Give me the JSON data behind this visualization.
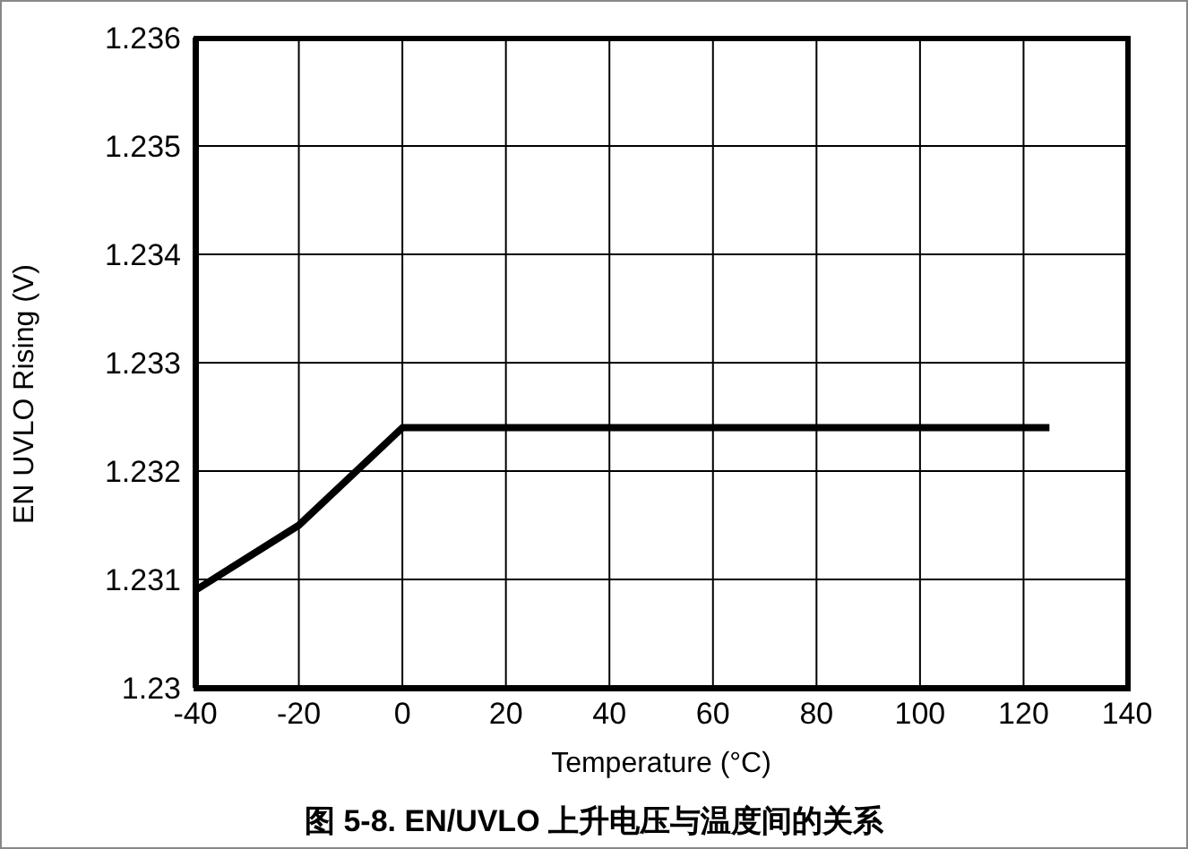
{
  "chart_data": {
    "type": "line",
    "title": "图 5-8. EN/UVLO 上升电压与温度间的关系",
    "xlabel": "Temperature (°C)",
    "ylabel": "EN UVLO Rising (V)",
    "x": [
      -40,
      -20,
      0,
      125
    ],
    "series": [
      {
        "color": "#000000",
        "values": [
          1.2309,
          1.2315,
          1.2324,
          1.2324
        ]
      }
    ],
    "xlim": [
      -40,
      140
    ],
    "xticks": [
      -40,
      -20,
      0,
      20,
      40,
      60,
      80,
      100,
      120,
      140
    ],
    "ylim": [
      1.23,
      1.236
    ],
    "yticks": [
      1.23,
      1.231,
      1.232,
      1.233,
      1.234,
      1.235,
      1.236
    ],
    "grid": true,
    "legend": false,
    "marker": "none",
    "line_style": "solid"
  }
}
